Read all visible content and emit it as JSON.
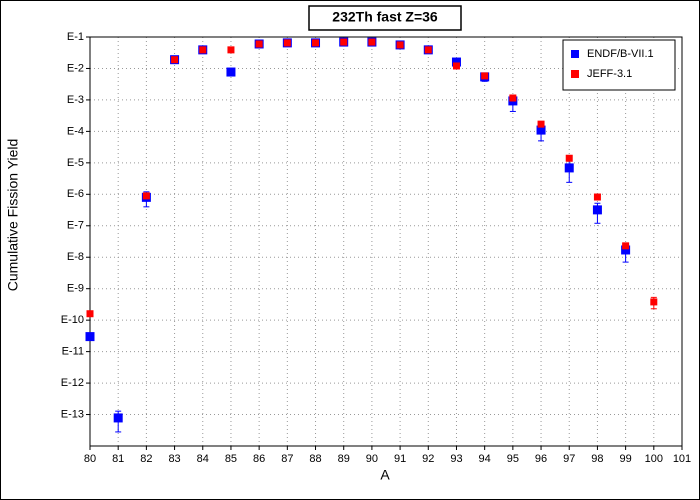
{
  "chart_data": {
    "type": "scatter",
    "title": "232Th fast Z=36",
    "x_label": "A",
    "y_label": "Cumulative Fission Yield",
    "log_y": true,
    "grid": true,
    "legend": "upper right",
    "xlim": [
      80,
      101
    ],
    "xticks": [
      80,
      81,
      82,
      83,
      84,
      85,
      86,
      87,
      88,
      89,
      90,
      91,
      92,
      93,
      94,
      95,
      96,
      97,
      98,
      99,
      100,
      101
    ],
    "ylim": [
      1e-14,
      0.1
    ],
    "yticks": [
      {
        "value": 0.1,
        "label": "E-1"
      },
      {
        "value": 0.01,
        "label": "E-2"
      },
      {
        "value": 0.001,
        "label": "E-3"
      },
      {
        "value": 0.0001,
        "label": "E-4"
      },
      {
        "value": 1e-05,
        "label": "E-5"
      },
      {
        "value": 1e-06,
        "label": "E-6"
      },
      {
        "value": 1e-07,
        "label": "E-7"
      },
      {
        "value": 1e-08,
        "label": "E-8"
      },
      {
        "value": 1e-09,
        "label": "E-9"
      },
      {
        "value": 1e-10,
        "label": "E-10"
      },
      {
        "value": 1e-11,
        "label": "E-11"
      },
      {
        "value": 1e-12,
        "label": "E-12"
      },
      {
        "value": 1e-13,
        "label": "E-13"
      }
    ],
    "series": [
      {
        "name": "ENDF/B-VII.1",
        "color": "#0000ff",
        "x": [
          80,
          81,
          82,
          83,
          84,
          85,
          86,
          87,
          88,
          89,
          90,
          91,
          92,
          93,
          94,
          95,
          96,
          97,
          98,
          99
        ],
        "values": [
          3e-11,
          7.8e-14,
          8e-07,
          0.019,
          0.039,
          0.0077,
          0.06,
          0.065,
          0.065,
          0.069,
          0.069,
          0.056,
          0.039,
          0.016,
          0.0054,
          0.00093,
          0.00011,
          6.9e-06,
          3.2e-07,
          1.7e-08
        ],
        "errors": [
          null,
          5e-14,
          4e-07,
          null,
          null,
          null,
          null,
          null,
          null,
          null,
          null,
          null,
          null,
          null,
          0.0015,
          0.0005,
          6e-05,
          4.5e-06,
          2e-07,
          1e-08
        ]
      },
      {
        "name": "JEFF-3.1",
        "color": "#ff0000",
        "x": [
          80,
          82,
          83,
          84,
          85,
          86,
          87,
          88,
          89,
          90,
          91,
          92,
          93,
          94,
          95,
          96,
          97,
          98,
          99,
          100
        ],
        "values": [
          1.6e-10,
          8.9e-07,
          0.019,
          0.039,
          0.039,
          0.06,
          0.065,
          0.065,
          0.069,
          0.069,
          0.056,
          0.039,
          0.012,
          0.0058,
          0.00115,
          0.00017,
          1.4e-05,
          8.2e-07,
          2.3e-08,
          3.8e-10
        ],
        "errors": [
          null,
          null,
          null,
          null,
          null,
          null,
          null,
          null,
          null,
          null,
          null,
          null,
          null,
          null,
          null,
          null,
          null,
          null,
          null,
          1.5e-10
        ]
      }
    ]
  }
}
